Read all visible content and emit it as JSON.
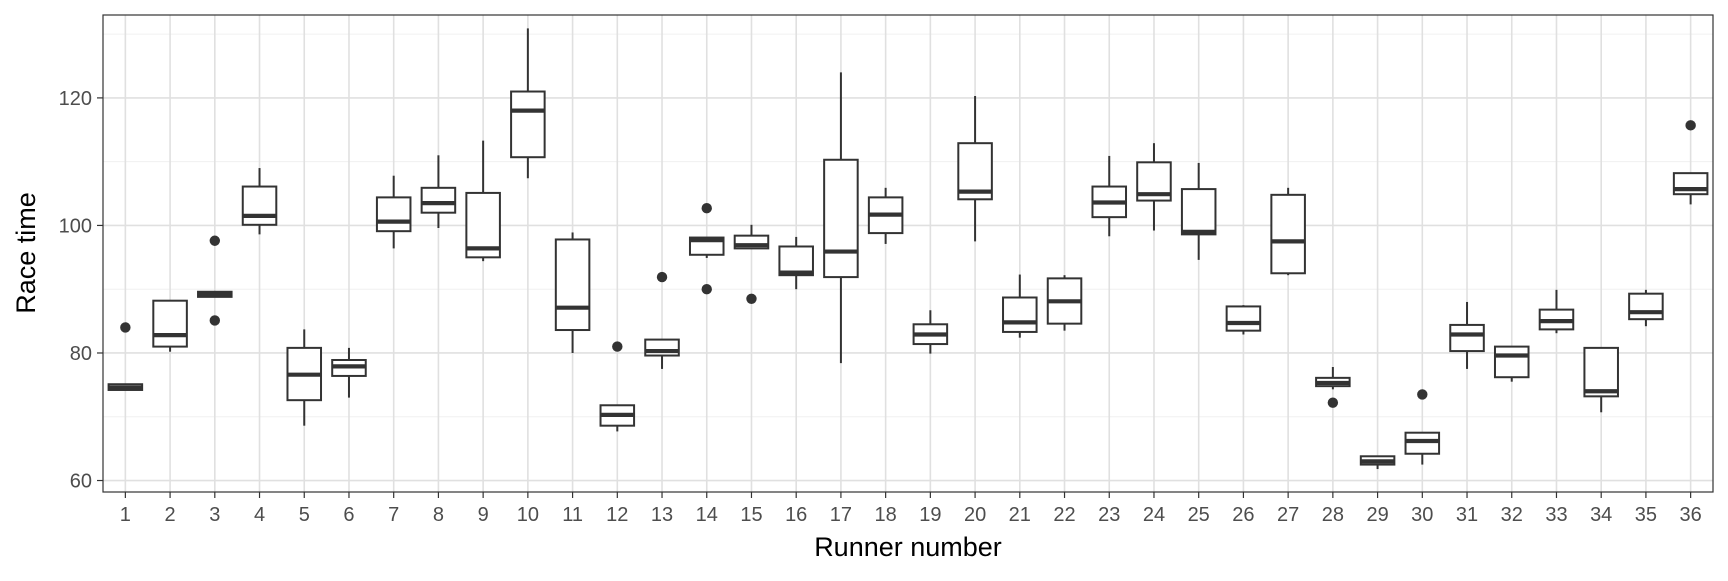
{
  "chart_data": {
    "type": "box",
    "xlabel": "Runner number",
    "ylabel": "Race time",
    "ylim": [
      58.2,
      133
    ],
    "yticks": [
      60,
      80,
      100,
      120
    ],
    "grid": true,
    "colors": {
      "box_stroke": "#333333",
      "grid_major": "#e0e0e0",
      "grid_minor": "#f0f0f0",
      "panel_border": "#333333",
      "outlier": "#333333"
    },
    "categories": [
      "1",
      "2",
      "3",
      "4",
      "5",
      "6",
      "7",
      "8",
      "9",
      "10",
      "11",
      "12",
      "13",
      "14",
      "15",
      "16",
      "17",
      "18",
      "19",
      "20",
      "21",
      "22",
      "23",
      "24",
      "25",
      "26",
      "27",
      "28",
      "29",
      "30",
      "31",
      "32",
      "33",
      "34",
      "35",
      "36"
    ],
    "boxes": [
      {
        "runner": "1",
        "whisker_low": 74.2,
        "q1": 74.2,
        "median": 74.6,
        "q3": 75.1,
        "whisker_high": 75.1,
        "outliers": [
          84
        ]
      },
      {
        "runner": "2",
        "whisker_low": 80.2,
        "q1": 81.0,
        "median": 82.8,
        "q3": 88.2,
        "whisker_high": 88.2,
        "outliers": []
      },
      {
        "runner": "3",
        "whisker_low": 88.8,
        "q1": 88.8,
        "median": 89.2,
        "q3": 89.6,
        "whisker_high": 89.6,
        "outliers": [
          97.6,
          85.1
        ]
      },
      {
        "runner": "4",
        "whisker_low": 98.6,
        "q1": 100.1,
        "median": 101.5,
        "q3": 106.1,
        "whisker_high": 109.0,
        "outliers": []
      },
      {
        "runner": "5",
        "whisker_low": 68.6,
        "q1": 72.6,
        "median": 76.6,
        "q3": 80.8,
        "whisker_high": 83.7,
        "outliers": []
      },
      {
        "runner": "6",
        "whisker_low": 73.0,
        "q1": 76.4,
        "median": 77.9,
        "q3": 78.9,
        "whisker_high": 80.8,
        "outliers": []
      },
      {
        "runner": "7",
        "whisker_low": 96.4,
        "q1": 99.1,
        "median": 100.6,
        "q3": 104.4,
        "whisker_high": 107.8,
        "outliers": []
      },
      {
        "runner": "8",
        "whisker_low": 99.6,
        "q1": 102.0,
        "median": 103.5,
        "q3": 105.9,
        "whisker_high": 111.0,
        "outliers": []
      },
      {
        "runner": "9",
        "whisker_low": 94.4,
        "q1": 95.0,
        "median": 96.4,
        "q3": 105.1,
        "whisker_high": 113.3,
        "outliers": []
      },
      {
        "runner": "10",
        "whisker_low": 107.4,
        "q1": 110.7,
        "median": 118.0,
        "q3": 121.0,
        "whisker_high": 130.9,
        "outliers": []
      },
      {
        "runner": "11",
        "whisker_low": 80.0,
        "q1": 83.6,
        "median": 87.1,
        "q3": 97.8,
        "whisker_high": 98.9,
        "outliers": []
      },
      {
        "runner": "12",
        "whisker_low": 67.7,
        "q1": 68.6,
        "median": 70.3,
        "q3": 71.8,
        "whisker_high": 71.8,
        "outliers": [
          81.0
        ]
      },
      {
        "runner": "13",
        "whisker_low": 77.5,
        "q1": 79.6,
        "median": 80.3,
        "q3": 82.1,
        "whisker_high": 82.1,
        "outliers": [
          91.9
        ]
      },
      {
        "runner": "14",
        "whisker_low": 94.9,
        "q1": 95.4,
        "median": 97.7,
        "q3": 98.1,
        "whisker_high": 98.1,
        "outliers": [
          102.7,
          90.0
        ]
      },
      {
        "runner": "15",
        "whisker_low": 96.4,
        "q1": 96.4,
        "median": 96.9,
        "q3": 98.4,
        "whisker_high": 100.1,
        "outliers": [
          88.5
        ]
      },
      {
        "runner": "16",
        "whisker_low": 90.0,
        "q1": 92.2,
        "median": 92.6,
        "q3": 96.7,
        "whisker_high": 98.2,
        "outliers": []
      },
      {
        "runner": "17",
        "whisker_low": 78.4,
        "q1": 91.9,
        "median": 95.9,
        "q3": 110.3,
        "whisker_high": 124.0,
        "outliers": []
      },
      {
        "runner": "18",
        "whisker_low": 97.1,
        "q1": 98.8,
        "median": 101.7,
        "q3": 104.4,
        "whisker_high": 105.9,
        "outliers": []
      },
      {
        "runner": "19",
        "whisker_low": 79.9,
        "q1": 81.4,
        "median": 82.9,
        "q3": 84.5,
        "whisker_high": 86.7,
        "outliers": []
      },
      {
        "runner": "20",
        "whisker_low": 97.5,
        "q1": 104.1,
        "median": 105.3,
        "q3": 112.9,
        "whisker_high": 120.3,
        "outliers": []
      },
      {
        "runner": "21",
        "whisker_low": 82.4,
        "q1": 83.3,
        "median": 84.8,
        "q3": 88.7,
        "whisker_high": 92.3,
        "outliers": []
      },
      {
        "runner": "22",
        "whisker_low": 83.5,
        "q1": 84.6,
        "median": 88.1,
        "q3": 91.7,
        "whisker_high": 92.2,
        "outliers": []
      },
      {
        "runner": "23",
        "whisker_low": 98.3,
        "q1": 101.3,
        "median": 103.6,
        "q3": 106.1,
        "whisker_high": 110.9,
        "outliers": []
      },
      {
        "runner": "24",
        "whisker_low": 99.2,
        "q1": 103.9,
        "median": 104.9,
        "q3": 109.9,
        "whisker_high": 112.9,
        "outliers": []
      },
      {
        "runner": "25",
        "whisker_low": 94.6,
        "q1": 98.6,
        "median": 99.0,
        "q3": 105.7,
        "whisker_high": 109.8,
        "outliers": []
      },
      {
        "runner": "26",
        "whisker_low": 82.9,
        "q1": 83.5,
        "median": 84.7,
        "q3": 87.3,
        "whisker_high": 87.5,
        "outliers": []
      },
      {
        "runner": "27",
        "whisker_low": 92.2,
        "q1": 92.5,
        "median": 97.5,
        "q3": 104.8,
        "whisker_high": 105.9,
        "outliers": []
      },
      {
        "runner": "28",
        "whisker_low": 74.3,
        "q1": 74.8,
        "median": 75.3,
        "q3": 76.1,
        "whisker_high": 77.8,
        "outliers": [
          72.2
        ]
      },
      {
        "runner": "29",
        "whisker_low": 61.8,
        "q1": 62.5,
        "median": 63.0,
        "q3": 63.8,
        "whisker_high": 63.8,
        "outliers": []
      },
      {
        "runner": "30",
        "whisker_low": 62.5,
        "q1": 64.2,
        "median": 66.2,
        "q3": 67.5,
        "whisker_high": 67.5,
        "outliers": [
          73.5
        ]
      },
      {
        "runner": "31",
        "whisker_low": 77.5,
        "q1": 80.3,
        "median": 82.9,
        "q3": 84.4,
        "whisker_high": 88.0,
        "outliers": []
      },
      {
        "runner": "32",
        "whisker_low": 75.5,
        "q1": 76.2,
        "median": 79.6,
        "q3": 81.0,
        "whisker_high": 81.0,
        "outliers": []
      },
      {
        "runner": "33",
        "whisker_low": 83.1,
        "q1": 83.7,
        "median": 85.0,
        "q3": 86.8,
        "whisker_high": 89.9,
        "outliers": []
      },
      {
        "runner": "34",
        "whisker_low": 70.7,
        "q1": 73.2,
        "median": 74.0,
        "q3": 80.8,
        "whisker_high": 80.8,
        "outliers": []
      },
      {
        "runner": "35",
        "whisker_low": 84.2,
        "q1": 85.3,
        "median": 86.4,
        "q3": 89.3,
        "whisker_high": 89.9,
        "outliers": []
      },
      {
        "runner": "36",
        "whisker_low": 103.3,
        "q1": 104.9,
        "median": 105.7,
        "q3": 108.2,
        "whisker_high": 108.2,
        "outliers": [
          115.7
        ]
      }
    ]
  }
}
